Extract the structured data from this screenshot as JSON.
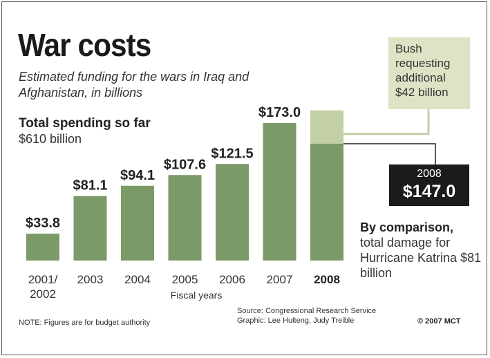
{
  "header": {
    "title": "War costs",
    "subtitle": "Estimated funding for the wars in Iraq and Afghanistan, in billions"
  },
  "total": {
    "label": "Total spending so far",
    "value": "$610 billion"
  },
  "chart_data": {
    "type": "bar",
    "categories": [
      "2001/\n2002",
      "2003",
      "2004",
      "2005",
      "2006",
      "2007",
      "2008"
    ],
    "values": [
      33.8,
      81.1,
      94.1,
      107.6,
      121.5,
      173.0,
      147.0
    ],
    "value_labels": [
      "$33.8",
      "$81.1",
      "$94.1",
      "$107.6",
      "$121.5",
      "$173.0",
      ""
    ],
    "stacked_2008": {
      "base": 147.0,
      "additional_requested": 42.0
    },
    "xlabel": "Fiscal years",
    "ylabel": "",
    "ylim": [
      0,
      189
    ],
    "grid": false,
    "colors": {
      "bar": "#7b9a68",
      "requested": "#c3cfa6",
      "callout_line": "#222222"
    }
  },
  "annotations": {
    "bush_request": "Bush requesting additional $42 billion",
    "callout_year": "2008",
    "callout_value": "$147.0",
    "comparison_label": "By comparison,",
    "comparison_text": "total damage for Hurricane Katrina $81 billion"
  },
  "footer": {
    "note": "NOTE: Figures are for budget authority",
    "source": "Source: Congressional Research Service",
    "graphic": "Graphic: Lee Hulteng, Judy Treible",
    "copyright": "© 2007 MCT"
  }
}
